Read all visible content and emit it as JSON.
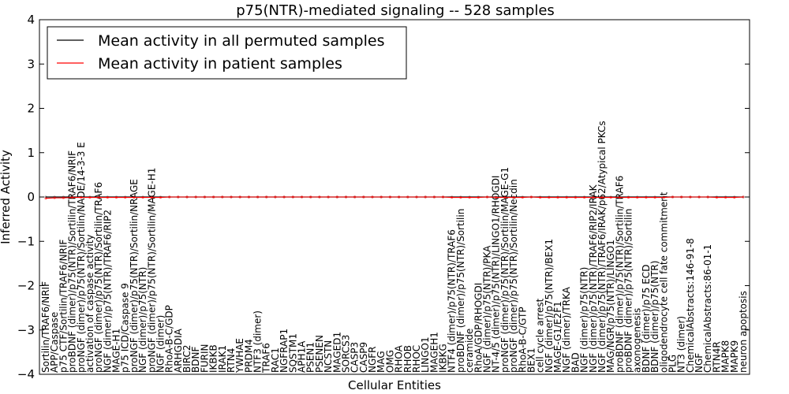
{
  "chart_data": {
    "type": "line",
    "title": "p75(NTR)-mediated signaling -- 528 samples",
    "xlabel": "Cellular Entities",
    "ylabel": "Inferred Activity",
    "ylim": [
      -4,
      4
    ],
    "yticks": [
      -4,
      -3,
      -2,
      -1,
      0,
      1,
      2,
      3,
      4
    ],
    "ytick_labels": [
      "−4",
      "−3",
      "−2",
      "−1",
      "0",
      "1",
      "2",
      "3",
      "4"
    ],
    "legend_position": "top-left",
    "categories": [
      "Sortilin/TRAF6/NRIF",
      "APP/Caspase",
      "p75 CTF/Sortilin/TRAF6/NRIF",
      "proBDNF (dimer)/p75(NTR)/Sortilin/TRAF6/NRIF",
      "proNGF (dimer)/p75(NTR)/Sortilin/NADE/14-3-3 E",
      "activation of caspase activity",
      "proNGF (dimer)/p75(NTR)/Sortilin/TRAF6",
      "NGF (dimer)/p75(NTR)/TRAF6/RIP2",
      "MAGE-H1",
      "p75 ICD/Caspase 9",
      "proNGF (dimer)/p75(NTR)/Sortilin/NRAGE",
      "NGF (dimer)/p75(NTR)",
      "proNGF (dimer)/p75(NTR)/Sortilin/MAGE-H1",
      "NGF (dimer)",
      "RhoA-B-C/GDP",
      "ARHGDIA",
      "BIRC2",
      "BDNF",
      "FURIN",
      "IKBKB",
      "IRAK1",
      "RTN4",
      "YWHAE",
      "PRDM4",
      "NTF3 (dimer)",
      "TRAF6",
      "RAC1",
      "NGFRAP1",
      "SQSTM1",
      "APH1A",
      "PSEN1",
      "PSENEN",
      "NCSTN",
      "MAGED1",
      "SORCS3",
      "CASP3",
      "CASP9",
      "NGFR",
      "MAG",
      "OMG",
      "RHOA",
      "RHOB",
      "RHOC",
      "LINGO1",
      "MAGEH1",
      "IKBKG",
      "NTF4 (dimer)/p75(NTR)/TRAF6",
      "proBDNF (dimer)/p75(NTR)/Sortilin",
      "ceramide",
      "RhoA/GDP/RHOGDI",
      "NGF (dimer)/p75(NTR)/PKA",
      "NT-4/5 (dimer)/p75(NTR)/LINGO1/RHOGDI",
      "proNGF (dimer)/p75(NTR)/Sortilin/MAGE-G1",
      "proNGF (dimer)/p75(NTR)/Sortilin/Necdin",
      "RhoA-B-C/GTP",
      "BEX1",
      "cell cycle arrest",
      "NGF (dimer)/p75(NTR)/BEX1",
      "MAGE-G1/E2F1",
      "NGF (dimer)/TRKA",
      "BAD",
      "NGF (dimer)/p75(NTR)",
      "NGF (dimer)/p75(NTR)/TRAF6/RIP2/IRAK",
      "NGF (dimer)/p75(NTR)/TRAF6/IRAK/p62/Atypical PKCs",
      "MAG/NGR/p75(NTR)/LINGO1",
      "proBDNF (dimer)/p75(NTR)/Sortilin/TRAF6",
      "proBDNF (dimer)/p75(NTR)/Sortilin",
      "axonogenesis",
      "BDNF (dimer)/p75 ECD",
      "BDNF (dimer)/p75(NTR)",
      "oligodendrocyte cell fate commitment",
      "PLG",
      "NT3 (dimer)",
      "ChemicalAbstracts:146-91-8",
      "NGF",
      "ChemicalAbstracts:86-01-1",
      "RTN4R",
      "MAPK8",
      "MAPK9",
      "neuron apoptosis"
    ],
    "series": [
      {
        "name": "Mean activity in all permuted samples",
        "color": "#000000",
        "values": [
          0,
          0,
          0,
          0,
          0,
          0,
          0,
          0,
          0,
          0,
          0,
          0,
          0,
          0,
          0,
          0,
          0,
          0,
          0,
          0,
          0,
          0,
          0,
          0,
          0,
          0,
          0,
          0,
          0,
          0,
          0,
          0,
          0,
          0,
          0,
          0,
          0,
          0,
          0,
          0,
          0,
          0,
          0,
          0,
          0,
          0,
          0,
          0,
          0,
          0,
          0,
          0,
          0,
          0,
          0,
          0,
          0,
          0,
          0,
          0,
          0,
          0,
          0,
          0,
          0,
          0,
          0,
          0,
          0,
          0,
          0,
          0,
          0,
          0,
          0,
          0,
          0,
          0,
          0,
          0
        ]
      },
      {
        "name": "Mean activity in patient samples",
        "color": "#ff0000",
        "values": [
          -0.03,
          -0.02,
          -0.02,
          -0.01,
          -0.01,
          -0.01,
          -0.01,
          -0.01,
          -0.01,
          -0.01,
          -0.01,
          -0.01,
          -0.01,
          -0.01,
          0,
          0,
          0,
          0,
          0,
          0,
          0,
          0,
          0,
          0,
          0,
          0,
          0,
          0,
          0,
          0,
          0,
          0,
          0,
          0,
          0,
          0,
          0,
          0,
          0,
          0,
          0,
          0,
          0,
          0,
          0,
          0,
          -0.01,
          -0.01,
          -0.01,
          -0.01,
          0,
          -0.01,
          -0.01,
          -0.01,
          -0.01,
          0,
          -0.01,
          -0.01,
          -0.01,
          -0.01,
          -0.01,
          -0.01,
          -0.01,
          -0.01,
          -0.01,
          -0.01,
          -0.01,
          -0.01,
          -0.01,
          -0.01,
          -0.01,
          0,
          0,
          0,
          0,
          0,
          -0.01,
          -0.01,
          -0.01,
          0
        ]
      }
    ]
  }
}
